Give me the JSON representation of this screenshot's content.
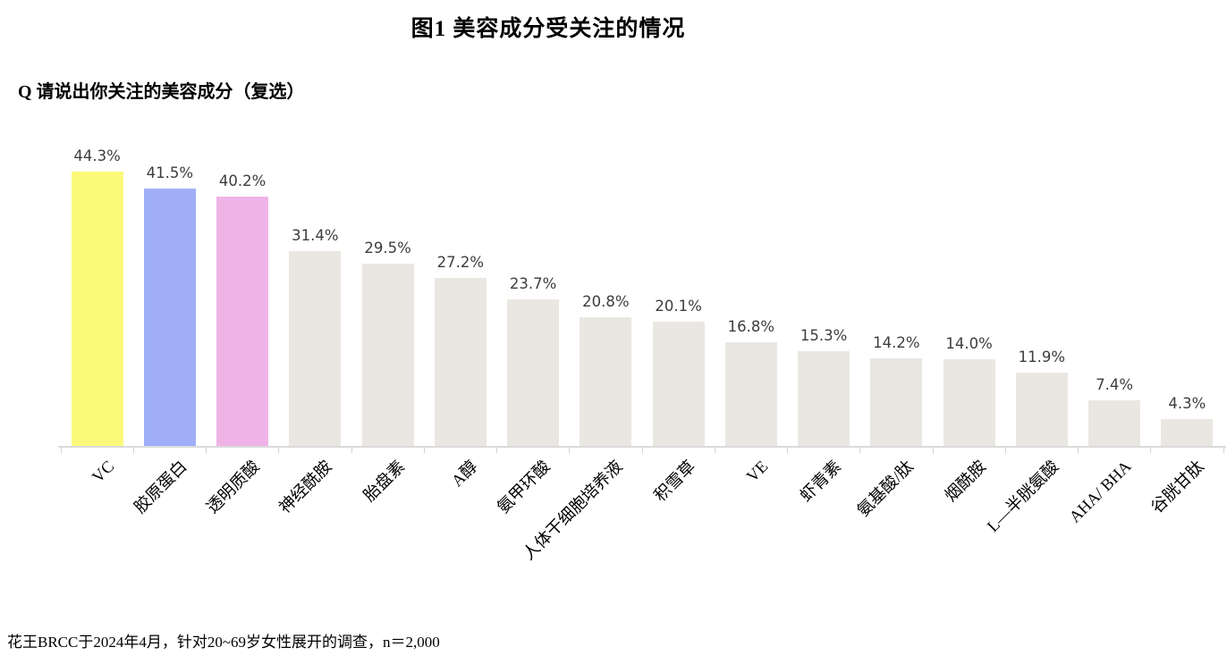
{
  "page": {
    "title": "图1  美容成分受关注的情况",
    "question": "Q 请说出你关注的美容成分（复选）",
    "footnote": "花王BRCC于2024年4月，针对20~69岁女性展开的调查，n＝2,000"
  },
  "chart_data": {
    "type": "bar",
    "title": "图1 美容成分受关注的情况",
    "subtitle": "Q 请说出你关注的美容成分（复选）",
    "categories": [
      "VC",
      "胶原蛋白",
      "透明质酸",
      "神经酰胺",
      "胎盘素",
      "A醇",
      "氨甲环酸",
      "人体干细胞培养液",
      "积雪草",
      "VE",
      "虾青素",
      "氨基酸/肽",
      "烟酰胺",
      "L—半胱氨酸",
      "AHA/ BHA",
      "谷胱甘肽"
    ],
    "values": [
      44.3,
      41.5,
      40.2,
      31.4,
      29.5,
      27.2,
      23.7,
      20.8,
      20.1,
      16.8,
      15.3,
      14.2,
      14.0,
      11.9,
      7.4,
      4.3
    ],
    "value_labels": [
      "44.3%",
      "41.5%",
      "40.2%",
      "31.4%",
      "29.5%",
      "27.2%",
      "23.7%",
      "20.8%",
      "20.1%",
      "16.8%",
      "15.3%",
      "14.2%",
      "14.0%",
      "11.9%",
      "7.4%",
      "4.3%"
    ],
    "bar_colors": [
      "#FBFA7B",
      "#A0AFF8",
      "#F0B3E6",
      "#EAE7E2",
      "#EAE7E2",
      "#EAE7E2",
      "#EAE7E2",
      "#EAE7E2",
      "#EAE7E2",
      "#EAE7E2",
      "#EAE7E2",
      "#EAE7E2",
      "#EAE7E2",
      "#EAE7E2",
      "#EAE7E2",
      "#EAE7E2"
    ],
    "xlabel": "",
    "ylabel": "",
    "ylim": [
      0,
      50
    ],
    "grid": false,
    "legend": null,
    "value_label_color": "#3d3d3d",
    "axis_color": "#dbdbdb",
    "footnote": "花王BRCC于2024年4月，针对20~69岁女性展开的调查，n＝2,000"
  }
}
